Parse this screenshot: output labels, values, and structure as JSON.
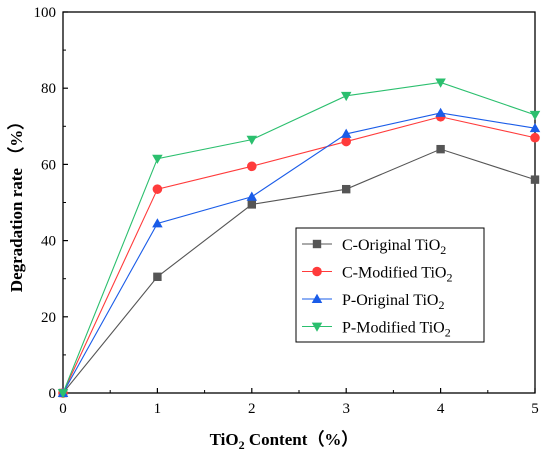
{
  "chart_data": {
    "type": "line",
    "xlabel": {
      "main": "TiO",
      "sub": "2",
      "rest": " Content（%）"
    },
    "ylabel": "Degradation rate （%）",
    "x": [
      0,
      1,
      2,
      3,
      4,
      5
    ],
    "xlim": [
      0,
      5
    ],
    "ylim": [
      0,
      100
    ],
    "xticks": [
      "0",
      "1",
      "2",
      "3",
      "4",
      "5"
    ],
    "yticks": [
      "0",
      "20",
      "40",
      "60",
      "80",
      "100"
    ],
    "legend_position": "lower-right",
    "grid": false,
    "series": [
      {
        "name": "C-Original TiO",
        "name_sub": "2",
        "color": "#555555",
        "marker": "square",
        "values": [
          0,
          30.5,
          49.5,
          53.5,
          64,
          56
        ]
      },
      {
        "name": "C-Modified TiO",
        "name_sub": "2",
        "color": "#ff3b3b",
        "marker": "circle",
        "values": [
          0,
          53.5,
          59.5,
          66,
          72.5,
          67
        ]
      },
      {
        "name": "P-Original TiO",
        "name_sub": "2",
        "color": "#1a5ce8",
        "marker": "triangle-up",
        "values": [
          0,
          44.5,
          51.5,
          68,
          73.5,
          69.5
        ]
      },
      {
        "name": "P-Modified TiO",
        "name_sub": "2",
        "color": "#2bbf6e",
        "marker": "triangle-down",
        "values": [
          0,
          61.5,
          66.5,
          78,
          81.5,
          73
        ]
      }
    ]
  }
}
